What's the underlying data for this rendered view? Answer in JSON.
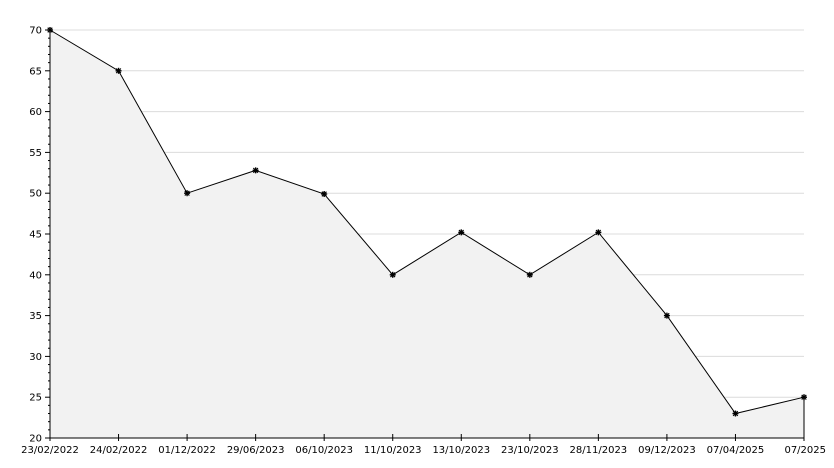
{
  "chart_data": {
    "type": "area",
    "title": "",
    "xlabel": "",
    "ylabel": "",
    "categories": [
      "23/02/2022",
      "24/02/2022",
      "01/12/2022",
      "29/06/2023",
      "06/10/2023",
      "11/10/2023",
      "13/10/2023",
      "23/10/2023",
      "28/11/2023",
      "09/12/2023",
      "07/04/2025",
      "07/2025"
    ],
    "values": [
      70,
      65,
      50,
      52.8,
      49.9,
      40,
      45.2,
      40,
      45.2,
      35,
      23,
      25
    ],
    "ylim": [
      20,
      70
    ],
    "yticks": [
      "20",
      "25",
      "30",
      "35",
      "40",
      "45",
      "50",
      "55",
      "60",
      "65",
      "70"
    ],
    "grid": true,
    "colors": {
      "fill": "#f2f2f2",
      "line": "#000000",
      "grid": "#dcdcdc",
      "marker": "#000000"
    }
  }
}
